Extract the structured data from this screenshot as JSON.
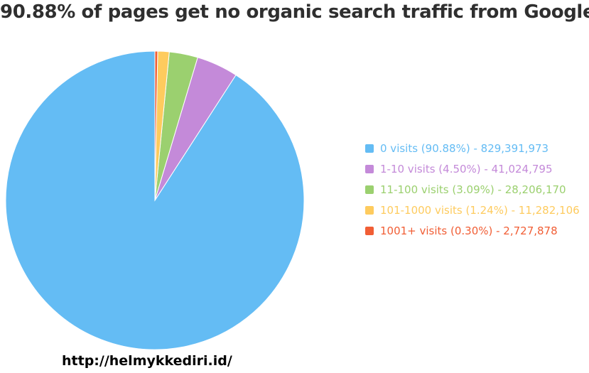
{
  "chart_data": {
    "type": "pie",
    "title": "90.88% of pages get no organic search traffic from Google",
    "categories": [
      "0 visits",
      "1-10 visits",
      "11-100 visits",
      "101-1000 visits",
      "1001+ visits"
    ],
    "percentages": [
      90.88,
      4.5,
      3.09,
      1.24,
      0.3
    ],
    "values": [
      829391973,
      41024795,
      28206170,
      11282106,
      2727878
    ],
    "colors": [
      "#64bcf4",
      "#c48ad9",
      "#9bd06f",
      "#fecb5e",
      "#f15e35"
    ],
    "legend": [
      "0 visits (90.88%) - 829,391,973",
      "1-10 visits (4.50%) - 41,024,795",
      "11-100 visits (3.09%) - 28,206,170",
      "101-1000 visits (1.24%) - 11,282,106",
      "1001+ visits (0.30%) - 2,727,878"
    ],
    "legend_position": "right",
    "start_angle": "top",
    "direction": "counterclockwise"
  },
  "source_text": "http://helmykkediri.id/"
}
